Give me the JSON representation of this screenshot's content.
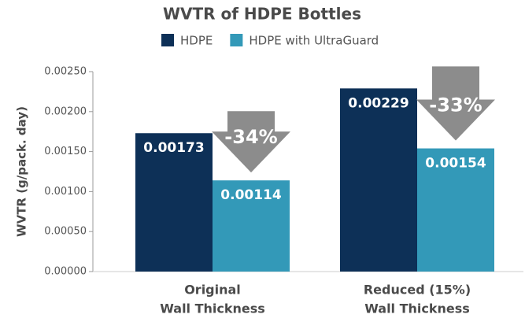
{
  "chart_data": {
    "type": "bar",
    "title": "WVTR of HDPE Bottles",
    "y_label": "WVTR (g/pack. day)",
    "categories": [
      [
        "Original",
        "Wall Thickness"
      ],
      [
        "Reduced (15%)",
        "Wall Thickness"
      ]
    ],
    "series": [
      {
        "name": "HDPE",
        "color": "#0d3057",
        "values": [
          0.00173,
          0.00229
        ]
      },
      {
        "name": "HDPE with UltraGuard",
        "color": "#3399b8",
        "values": [
          0.00114,
          0.00154
        ]
      }
    ],
    "annotations": [
      {
        "text": "-34%",
        "category": 0
      },
      {
        "text": "-33%",
        "category": 1
      }
    ],
    "annotation_color": "#8c8c8c",
    "ylim": [
      0,
      0.0025
    ],
    "yticks": [
      {
        "value": 0,
        "label": "0.00000"
      },
      {
        "value": 0.0005,
        "label": "0.00050"
      },
      {
        "value": 0.001,
        "label": "0.00100"
      },
      {
        "value": 0.0015,
        "label": "0.00150"
      },
      {
        "value": 0.002,
        "label": "0.00200"
      },
      {
        "value": 0.0025,
        "label": "0.00250"
      }
    ],
    "grid": false
  }
}
